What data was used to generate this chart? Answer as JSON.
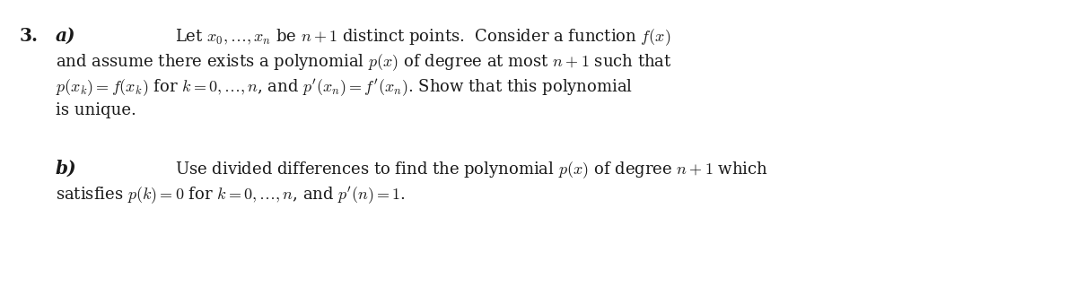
{
  "background_color": "#ffffff",
  "fig_width": 12.0,
  "fig_height": 3.3,
  "dpi": 100,
  "number": "3.",
  "part_a_label": "a)",
  "part_b_label": "b)",
  "part_a_lines": [
    "Let $x_0,\\ldots,x_n$ be $n+1$ distinct points.  Consider a function $f(x)$",
    "and assume there exists a polynomial $p(x)$ of degree at most $n+1$ such that",
    "$p(x_k) = f(x_k)$ for $k = 0,\\ldots,n$, and $p'(x_n) = f'(x_n)$. Show that this polynomial",
    "is unique."
  ],
  "part_b_lines": [
    "Use divided differences to find the polynomial $p(x)$ of degree $n+1$ which",
    "satisfies $p(k) = 0$ for $k = 0,\\ldots,n$, and $p'(n) = 1$."
  ],
  "font_size": 13.0,
  "text_color": "#1a1a1a"
}
